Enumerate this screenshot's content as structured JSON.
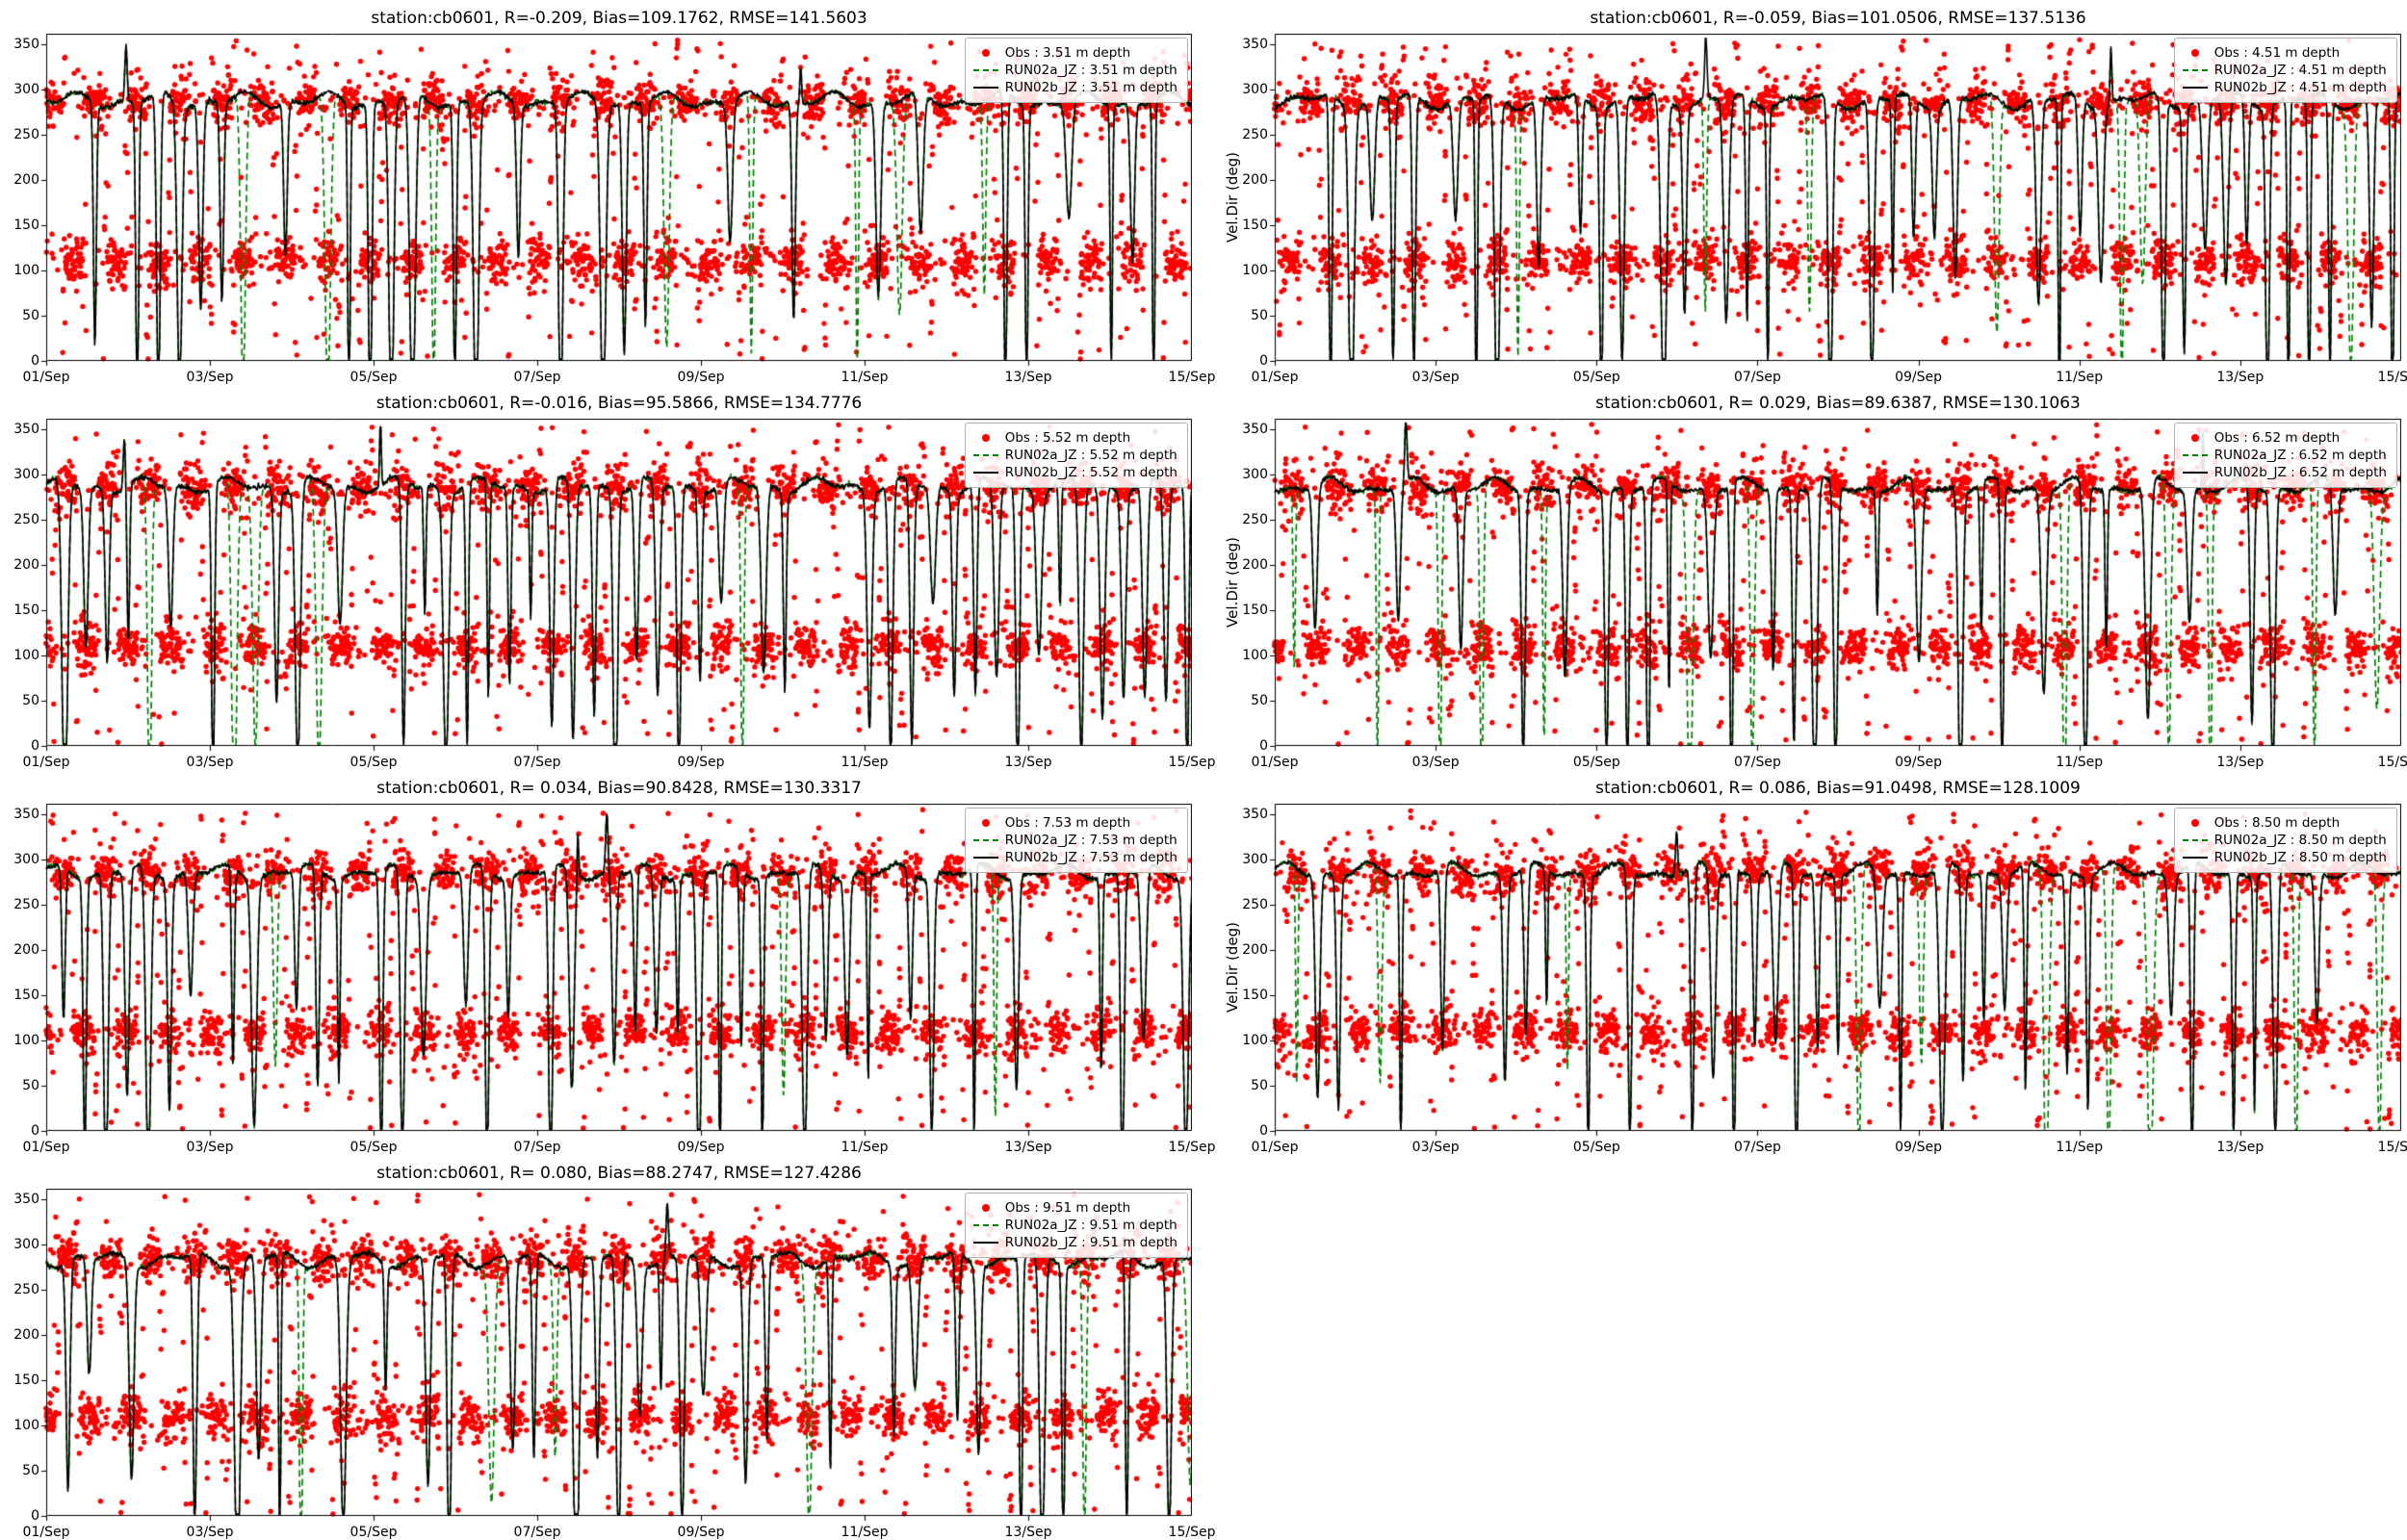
{
  "figure": {
    "station": "cb0601",
    "variable": "Vel.Dir (deg)",
    "layout": "4 rows x 2 columns, 7 subplots of current direction vs time at increasing depth"
  },
  "colors": {
    "obs": "#ff0000",
    "run02a": "#008000",
    "run02b": "#000000",
    "axis": "#000000",
    "legend_border": "#b0b0b0",
    "background": "#ffffff"
  },
  "axes_shared": {
    "xtick_labels": [
      "01/Sep",
      "03/Sep",
      "05/Sep",
      "07/Sep",
      "09/Sep",
      "11/Sep",
      "13/Sep",
      "15/Sep"
    ],
    "xticks_days": [
      0,
      2,
      4,
      6,
      8,
      10,
      12,
      14
    ],
    "x_range_days": [
      0,
      14
    ],
    "ytick_labels": [
      "0",
      "50",
      "100",
      "150",
      "200",
      "250",
      "300",
      "350"
    ],
    "yticks": [
      0,
      50,
      100,
      150,
      200,
      250,
      300,
      350
    ],
    "ylim": [
      0,
      362
    ],
    "grid": false,
    "legend_position": "upper right",
    "ylabel_right_column": "Vel.Dir (deg)"
  },
  "chart_data": [
    {
      "type": "scatter+line",
      "title": "station:cb0601, R=-0.209, Bias=109.1762, RMSE=141.5603",
      "station": "cb0601",
      "depth_m": 3.51,
      "stats": {
        "R": -0.209,
        "Bias": 109.1762,
        "RMSE": 141.5603
      },
      "ylabel": "",
      "seed": 7,
      "series": [
        {
          "name": "Obs : 3.51 m depth",
          "kind": "scatter",
          "color": "#ff0000",
          "pattern": {
            "tidal_period_days": 0.5175,
            "upper_band_deg": 286,
            "lower_band_deg": 110,
            "band_halfwidth_deg": 13,
            "transition_fraction": 0.2,
            "outlier_fraction": 0.02
          }
        },
        {
          "name": "RUN02a_JZ : 3.51 m depth",
          "kind": "line",
          "style": "dashed",
          "color": "#008000",
          "pattern": {
            "baseline_deg": 288,
            "extra_dip_prob": 0.3
          }
        },
        {
          "name": "RUN02b_JZ : 3.51 m depth",
          "kind": "line",
          "style": "solid",
          "color": "#000000",
          "pattern": {
            "baseline_deg": 288,
            "dip_prob": 0.5,
            "dip_depth_deg_range": [
              130,
              390
            ]
          }
        }
      ]
    },
    {
      "type": "scatter+line",
      "title": "station:cb0601, R=-0.059, Bias=101.0506, RMSE=137.5136",
      "station": "cb0601",
      "depth_m": 4.51,
      "stats": {
        "R": -0.059,
        "Bias": 101.0506,
        "RMSE": 137.5136
      },
      "ylabel": "Vel.Dir (deg)",
      "seed": 13,
      "series": [
        {
          "name": "Obs : 4.51 m depth",
          "kind": "scatter",
          "color": "#ff0000",
          "pattern": {
            "tidal_period_days": 0.5175,
            "upper_band_deg": 286,
            "lower_band_deg": 110,
            "band_halfwidth_deg": 13,
            "transition_fraction": 0.2,
            "outlier_fraction": 0.02
          }
        },
        {
          "name": "RUN02a_JZ : 4.51 m depth",
          "kind": "line",
          "style": "dashed",
          "color": "#008000",
          "pattern": {
            "baseline_deg": 288,
            "extra_dip_prob": 0.35
          }
        },
        {
          "name": "RUN02b_JZ : 4.51 m depth",
          "kind": "line",
          "style": "solid",
          "color": "#000000",
          "pattern": {
            "baseline_deg": 288,
            "dip_prob": 0.6,
            "dip_depth_deg_range": [
              130,
              390
            ]
          }
        }
      ]
    },
    {
      "type": "scatter+line",
      "title": "station:cb0601, R=-0.016, Bias=95.5866, RMSE=134.7776",
      "station": "cb0601",
      "depth_m": 5.52,
      "stats": {
        "R": -0.016,
        "Bias": 95.5866,
        "RMSE": 134.7776
      },
      "ylabel": "",
      "seed": 21,
      "series": [
        {
          "name": "Obs : 5.52 m depth",
          "kind": "scatter",
          "color": "#ff0000",
          "pattern": {
            "tidal_period_days": 0.5175,
            "upper_band_deg": 286,
            "lower_band_deg": 110,
            "band_halfwidth_deg": 13,
            "transition_fraction": 0.2,
            "outlier_fraction": 0.02
          }
        },
        {
          "name": "RUN02a_JZ : 5.52 m depth",
          "kind": "line",
          "style": "dashed",
          "color": "#008000",
          "pattern": {
            "baseline_deg": 288,
            "extra_dip_prob": 0.35
          }
        },
        {
          "name": "RUN02b_JZ : 5.52 m depth",
          "kind": "line",
          "style": "solid",
          "color": "#000000",
          "pattern": {
            "baseline_deg": 288,
            "dip_prob": 0.65,
            "dip_depth_deg_range": [
              130,
              390
            ]
          }
        }
      ]
    },
    {
      "type": "scatter+line",
      "title": "station:cb0601, R= 0.029, Bias=89.6387, RMSE=130.1063",
      "station": "cb0601",
      "depth_m": 6.52,
      "stats": {
        "R": 0.029,
        "Bias": 89.6387,
        "RMSE": 130.1063
      },
      "ylabel": "Vel.Dir (deg)",
      "seed": 5,
      "series": [
        {
          "name": "Obs : 6.52 m depth",
          "kind": "scatter",
          "color": "#ff0000",
          "pattern": {
            "tidal_period_days": 0.5175,
            "upper_band_deg": 286,
            "lower_band_deg": 110,
            "band_halfwidth_deg": 13,
            "transition_fraction": 0.2,
            "outlier_fraction": 0.02
          }
        },
        {
          "name": "RUN02a_JZ : 6.52 m depth",
          "kind": "line",
          "style": "dashed",
          "color": "#008000",
          "pattern": {
            "baseline_deg": 287,
            "extra_dip_prob": 0.35
          }
        },
        {
          "name": "RUN02b_JZ : 6.52 m depth",
          "kind": "line",
          "style": "solid",
          "color": "#000000",
          "pattern": {
            "baseline_deg": 287,
            "dip_prob": 0.6,
            "dip_depth_deg_range": [
              130,
              390
            ]
          }
        }
      ]
    },
    {
      "type": "scatter+line",
      "title": "station:cb0601, R= 0.034, Bias=90.8428, RMSE=130.3317",
      "station": "cb0601",
      "depth_m": 7.53,
      "stats": {
        "R": 0.034,
        "Bias": 90.8428,
        "RMSE": 130.3317
      },
      "ylabel": "",
      "seed": 17,
      "series": [
        {
          "name": "Obs : 7.53 m depth",
          "kind": "scatter",
          "color": "#ff0000",
          "pattern": {
            "tidal_period_days": 0.5175,
            "upper_band_deg": 285,
            "lower_band_deg": 110,
            "band_halfwidth_deg": 13,
            "transition_fraction": 0.2,
            "outlier_fraction": 0.02
          }
        },
        {
          "name": "RUN02a_JZ : 7.53 m depth",
          "kind": "line",
          "style": "dashed",
          "color": "#008000",
          "pattern": {
            "baseline_deg": 286,
            "extra_dip_prob": 0.35
          }
        },
        {
          "name": "RUN02b_JZ : 7.53 m depth",
          "kind": "line",
          "style": "solid",
          "color": "#000000",
          "pattern": {
            "baseline_deg": 286,
            "dip_prob": 0.6,
            "dip_depth_deg_range": [
              130,
              390
            ]
          }
        }
      ]
    },
    {
      "type": "scatter+line",
      "title": "station:cb0601, R= 0.086, Bias=91.0498, RMSE=128.1009",
      "station": "cb0601",
      "depth_m": 8.5,
      "stats": {
        "R": 0.086,
        "Bias": 91.0498,
        "RMSE": 128.1009
      },
      "ylabel": "Vel.Dir (deg)",
      "seed": 29,
      "series": [
        {
          "name": "Obs : 8.50 m depth",
          "kind": "scatter",
          "color": "#ff0000",
          "pattern": {
            "tidal_period_days": 0.5175,
            "upper_band_deg": 285,
            "lower_band_deg": 110,
            "band_halfwidth_deg": 13,
            "transition_fraction": 0.2,
            "outlier_fraction": 0.02
          }
        },
        {
          "name": "RUN02a_JZ : 8.50 m depth",
          "kind": "line",
          "style": "dashed",
          "color": "#008000",
          "pattern": {
            "baseline_deg": 287,
            "extra_dip_prob": 0.55
          }
        },
        {
          "name": "RUN02b_JZ : 8.50 m depth",
          "kind": "line",
          "style": "solid",
          "color": "#000000",
          "pattern": {
            "baseline_deg": 287,
            "dip_prob": 0.55,
            "dip_depth_deg_range": [
              130,
              390
            ]
          }
        }
      ]
    },
    {
      "type": "scatter+line",
      "title": "station:cb0601, R= 0.080, Bias=88.2747, RMSE=127.4286",
      "station": "cb0601",
      "depth_m": 9.51,
      "stats": {
        "R": 0.08,
        "Bias": 88.2747,
        "RMSE": 127.4286
      },
      "ylabel": "",
      "seed": 3,
      "series": [
        {
          "name": "Obs : 9.51 m depth",
          "kind": "scatter",
          "color": "#ff0000",
          "pattern": {
            "tidal_period_days": 0.5175,
            "upper_band_deg": 284,
            "lower_band_deg": 110,
            "band_halfwidth_deg": 13,
            "transition_fraction": 0.2,
            "outlier_fraction": 0.02
          }
        },
        {
          "name": "RUN02a_JZ : 9.51 m depth",
          "kind": "line",
          "style": "dashed",
          "color": "#008000",
          "pattern": {
            "baseline_deg": 284,
            "extra_dip_prob": 0.3
          }
        },
        {
          "name": "RUN02b_JZ : 9.51 m depth",
          "kind": "line",
          "style": "solid",
          "color": "#000000",
          "pattern": {
            "baseline_deg": 284,
            "dip_prob": 0.6,
            "dip_depth_deg_range": [
              130,
              390
            ]
          }
        }
      ]
    }
  ]
}
